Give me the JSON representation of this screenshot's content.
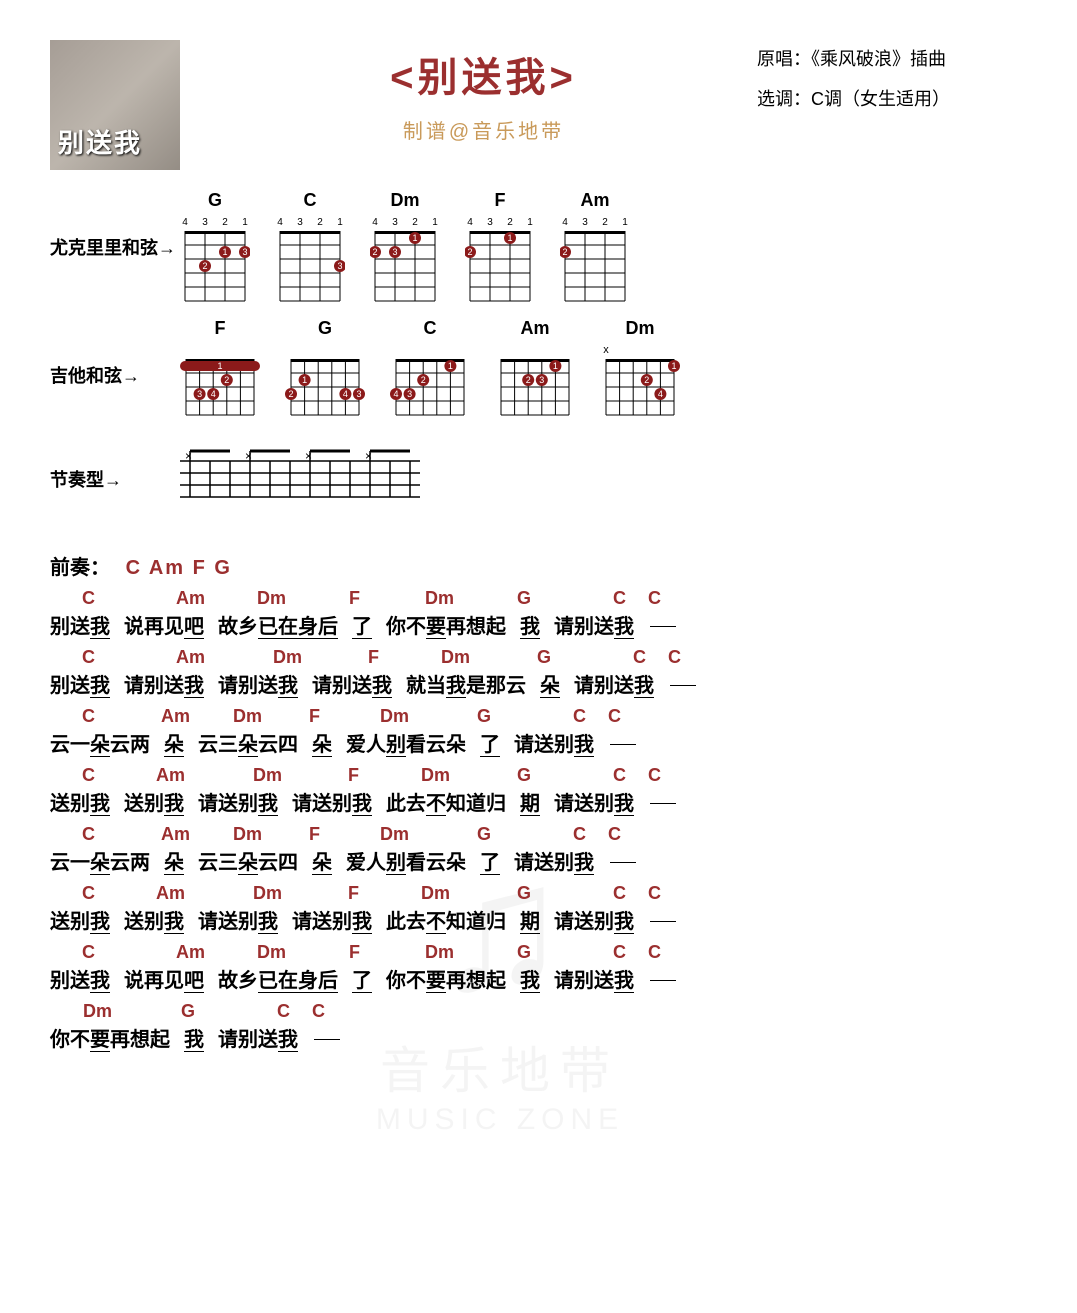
{
  "header": {
    "album_overlay": "别送我",
    "title": "<别送我>",
    "arranger": "制谱@音乐地带",
    "meta_original_label": "原唱：",
    "meta_original": "《乘风破浪》插曲",
    "meta_key_label": "选调：",
    "meta_key": "C调（女生适用）"
  },
  "colors": {
    "chord_color": "#9b2f2f",
    "arranger_color": "#c99a5a"
  },
  "sections": {
    "uke_label": "尤克里里和弦→",
    "guitar_label": "吉他和弦→",
    "rhythm_label": "节奏型→",
    "intro_label": "前奏：",
    "intro_chords": "C Am F G"
  },
  "uke_chords": [
    {
      "name": "G",
      "dots": [
        {
          "s": 2,
          "f": 2,
          "n": "1"
        },
        {
          "s": 3,
          "f": 3,
          "n": "2"
        },
        {
          "s": 1,
          "f": 2,
          "n": "3"
        }
      ]
    },
    {
      "name": "C",
      "dots": [
        {
          "s": 1,
          "f": 3,
          "n": "3"
        }
      ]
    },
    {
      "name": "Dm",
      "dots": [
        {
          "s": 2,
          "f": 1,
          "n": "1"
        },
        {
          "s": 4,
          "f": 2,
          "n": "2"
        },
        {
          "s": 3,
          "f": 2,
          "n": "3"
        }
      ]
    },
    {
      "name": "F",
      "dots": [
        {
          "s": 2,
          "f": 1,
          "n": "1"
        },
        {
          "s": 4,
          "f": 2,
          "n": "2"
        }
      ]
    },
    {
      "name": "Am",
      "dots": [
        {
          "s": 4,
          "f": 2,
          "n": "2"
        }
      ]
    }
  ],
  "guitar_chords": [
    {
      "name": "F",
      "barre": {
        "f": 1,
        "from": 1,
        "to": 6,
        "n": "1"
      },
      "dots": [
        {
          "s": 3,
          "f": 2,
          "n": "2"
        },
        {
          "s": 5,
          "f": 3,
          "n": "3"
        },
        {
          "s": 4,
          "f": 3,
          "n": "4"
        }
      ],
      "open": [],
      "mute": []
    },
    {
      "name": "G",
      "dots": [
        {
          "s": 5,
          "f": 2,
          "n": "1"
        },
        {
          "s": 6,
          "f": 3,
          "n": "2"
        },
        {
          "s": 1,
          "f": 3,
          "n": "3"
        },
        {
          "s": 2,
          "f": 3,
          "n": "4"
        }
      ],
      "open": [],
      "mute": []
    },
    {
      "name": "C",
      "dots": [
        {
          "s": 2,
          "f": 1,
          "n": "1"
        },
        {
          "s": 4,
          "f": 2,
          "n": "2"
        },
        {
          "s": 5,
          "f": 3,
          "n": "3"
        },
        {
          "s": 6,
          "f": 3,
          "n": "4"
        }
      ],
      "open": [],
      "mute": []
    },
    {
      "name": "Am",
      "dots": [
        {
          "s": 2,
          "f": 1,
          "n": "1"
        },
        {
          "s": 4,
          "f": 2,
          "n": "2"
        },
        {
          "s": 3,
          "f": 2,
          "n": "3"
        }
      ],
      "open": [],
      "mute": []
    },
    {
      "name": "Dm",
      "dots": [
        {
          "s": 1,
          "f": 1,
          "n": "1"
        },
        {
          "s": 3,
          "f": 2,
          "n": "2"
        },
        {
          "s": 2,
          "f": 3,
          "n": "4"
        }
      ],
      "open": [],
      "mute": [
        6
      ]
    }
  ],
  "lines": [
    [
      {
        "chord": "C",
        "pre": "别送",
        "u": "我",
        "coff": 32
      },
      {
        "chord": "Am",
        "pre": "说再见",
        "u": "吧",
        "coff": 52
      },
      {
        "chord": "Dm",
        "pre": "故乡",
        "u": "已",
        "post": "",
        "coff": 39,
        "u2": "在身后"
      },
      {
        "chord": "F",
        "pre": "",
        "u": "了",
        "coff": -3
      },
      {
        "chord": "Dm",
        "pre": "你不",
        "u": "要",
        "post": "再想起",
        "coff": 39
      },
      {
        "chord": "G",
        "pre": "",
        "u": "我",
        "coff": -3
      },
      {
        "chord": "C",
        "pre": "请别送",
        "u": "我",
        "coff": 59
      },
      {
        "chord": "C",
        "pre": "",
        "u": "",
        "coff": 0,
        "trail": true
      }
    ],
    [
      {
        "chord": "C",
        "pre": "别送",
        "u": "我",
        "coff": 32
      },
      {
        "chord": "Am",
        "pre": "请别送",
        "u": "我",
        "coff": 52
      },
      {
        "chord": "Dm",
        "pre": "请别送",
        "u": "我",
        "coff": 55
      },
      {
        "chord": "F",
        "pre": "请别送",
        "u": "我",
        "coff": 56
      },
      {
        "chord": "Dm",
        "pre": "就当",
        "u": "我",
        "post": "是那云",
        "coff": 35
      },
      {
        "chord": "G",
        "pre": "",
        "u": "朵",
        "coff": -3
      },
      {
        "chord": "C",
        "pre": "请别送",
        "u": "我",
        "coff": 59
      },
      {
        "chord": "C",
        "pre": "",
        "u": "",
        "coff": 0,
        "trail": true
      }
    ],
    [
      {
        "chord": "C",
        "pre": "云一",
        "u": "朵",
        "post": "云两",
        "coff": 32
      },
      {
        "chord": "Am",
        "pre": "",
        "u": "朵",
        "coff": -3
      },
      {
        "chord": "Dm",
        "pre": "云三",
        "u": "朵",
        "post": "云四",
        "coff": 35
      },
      {
        "chord": "F",
        "pre": "",
        "u": "朵",
        "coff": -3
      },
      {
        "chord": "Dm",
        "pre": "爱人",
        "u": "别",
        "post": "看云朵",
        "coff": 34
      },
      {
        "chord": "G",
        "pre": "",
        "u": "了",
        "coff": -3
      },
      {
        "chord": "C",
        "pre": "请送别",
        "u": "我",
        "coff": 59
      },
      {
        "chord": "C",
        "pre": "",
        "u": "",
        "coff": 0,
        "trail": true
      }
    ],
    [
      {
        "chord": "C",
        "pre": "送别",
        "u": "我",
        "coff": 32
      },
      {
        "chord": "Am",
        "pre": "送别",
        "u": "我",
        "coff": 32
      },
      {
        "chord": "Dm",
        "pre": "请送别",
        "u": "我",
        "coff": 55
      },
      {
        "chord": "F",
        "pre": "请送别",
        "u": "我",
        "coff": 56
      },
      {
        "chord": "Dm",
        "pre": "此去",
        "u": "不",
        "post": "知道归",
        "coff": 35
      },
      {
        "chord": "G",
        "pre": "",
        "u": "期",
        "coff": -3
      },
      {
        "chord": "C",
        "pre": "请送别",
        "u": "我",
        "coff": 59
      },
      {
        "chord": "C",
        "pre": "",
        "u": "",
        "coff": 0,
        "trail": true
      }
    ],
    [
      {
        "chord": "C",
        "pre": "云一",
        "u": "朵",
        "post": "云两",
        "coff": 32
      },
      {
        "chord": "Am",
        "pre": "",
        "u": "朵",
        "coff": -3
      },
      {
        "chord": "Dm",
        "pre": "云三",
        "u": "朵",
        "post": "云四",
        "coff": 35
      },
      {
        "chord": "F",
        "pre": "",
        "u": "朵",
        "coff": -3
      },
      {
        "chord": "Dm",
        "pre": "爱人",
        "u": "别",
        "post": "看云朵",
        "coff": 34
      },
      {
        "chord": "G",
        "pre": "",
        "u": "了",
        "coff": -3
      },
      {
        "chord": "C",
        "pre": "请送别",
        "u": "我",
        "coff": 59
      },
      {
        "chord": "C",
        "pre": "",
        "u": "",
        "coff": 0,
        "trail": true
      }
    ],
    [
      {
        "chord": "C",
        "pre": "送别",
        "u": "我",
        "coff": 32
      },
      {
        "chord": "Am",
        "pre": "送别",
        "u": "我",
        "coff": 32
      },
      {
        "chord": "Dm",
        "pre": "请送别",
        "u": "我",
        "coff": 55
      },
      {
        "chord": "F",
        "pre": "请送别",
        "u": "我",
        "coff": 56
      },
      {
        "chord": "Dm",
        "pre": "此去",
        "u": "不",
        "post": "知道归",
        "coff": 35
      },
      {
        "chord": "G",
        "pre": "",
        "u": "期",
        "coff": -3
      },
      {
        "chord": "C",
        "pre": "请送别",
        "u": "我",
        "coff": 59
      },
      {
        "chord": "C",
        "pre": "",
        "u": "",
        "coff": 0,
        "trail": true
      }
    ],
    [
      {
        "chord": "C",
        "pre": "别送",
        "u": "我",
        "coff": 32
      },
      {
        "chord": "Am",
        "pre": "说再见",
        "u": "吧",
        "coff": 52
      },
      {
        "chord": "Dm",
        "pre": "故乡",
        "u": "已",
        "u2": "在身后",
        "coff": 39
      },
      {
        "chord": "F",
        "pre": "",
        "u": "了",
        "coff": -3
      },
      {
        "chord": "Dm",
        "pre": "你不",
        "u": "要",
        "post": "再想起",
        "coff": 39
      },
      {
        "chord": "G",
        "pre": "",
        "u": "我",
        "coff": -3
      },
      {
        "chord": "C",
        "pre": "请别送",
        "u": "我",
        "coff": 59
      },
      {
        "chord": "C",
        "pre": "",
        "u": "",
        "coff": 0,
        "trail": true
      }
    ],
    [
      {
        "chord": "Dm",
        "pre": "你不",
        "u": "要",
        "post": "再想起",
        "coff": 33
      },
      {
        "chord": "G",
        "pre": "",
        "u": "我",
        "coff": -3
      },
      {
        "chord": "C",
        "pre": "请别送",
        "u": "我",
        "coff": 59
      },
      {
        "chord": "C",
        "pre": "",
        "u": "",
        "coff": 0,
        "trail": true
      }
    ]
  ]
}
